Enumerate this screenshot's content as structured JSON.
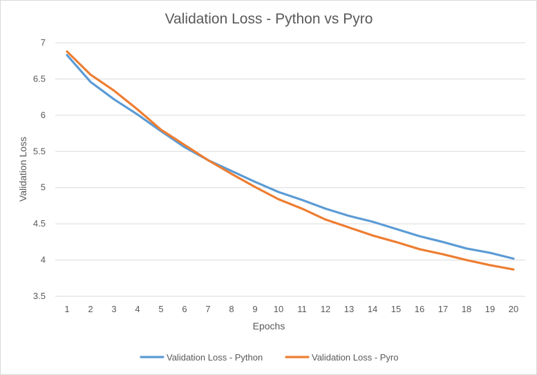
{
  "chart_data": {
    "type": "line",
    "title": "Validation Loss - Python vs Pyro",
    "xlabel": "Epochs",
    "ylabel": "Validation Loss",
    "x": [
      1,
      2,
      3,
      4,
      5,
      6,
      7,
      8,
      9,
      10,
      11,
      12,
      13,
      14,
      15,
      16,
      17,
      18,
      19,
      20
    ],
    "ylim": [
      3.5,
      7
    ],
    "yticks": [
      "3.5",
      "4",
      "4.5",
      "5",
      "5.5",
      "6",
      "6.5",
      "7"
    ],
    "grid": true,
    "legend_position": "bottom",
    "series": [
      {
        "name": "Validation Loss - Python",
        "color": "#5b9bd5",
        "values": [
          6.83,
          6.46,
          6.22,
          6.01,
          5.78,
          5.56,
          5.38,
          5.23,
          5.08,
          4.94,
          4.83,
          4.71,
          4.61,
          4.53,
          4.43,
          4.33,
          4.25,
          4.16,
          4.1,
          4.02
        ]
      },
      {
        "name": "Validation Loss - Pyro",
        "color": "#ed7d31",
        "values": [
          6.88,
          6.56,
          6.34,
          6.08,
          5.8,
          5.59,
          5.38,
          5.19,
          5.01,
          4.84,
          4.71,
          4.56,
          4.45,
          4.34,
          4.25,
          4.15,
          4.08,
          4.0,
          3.93,
          3.87
        ]
      }
    ]
  }
}
